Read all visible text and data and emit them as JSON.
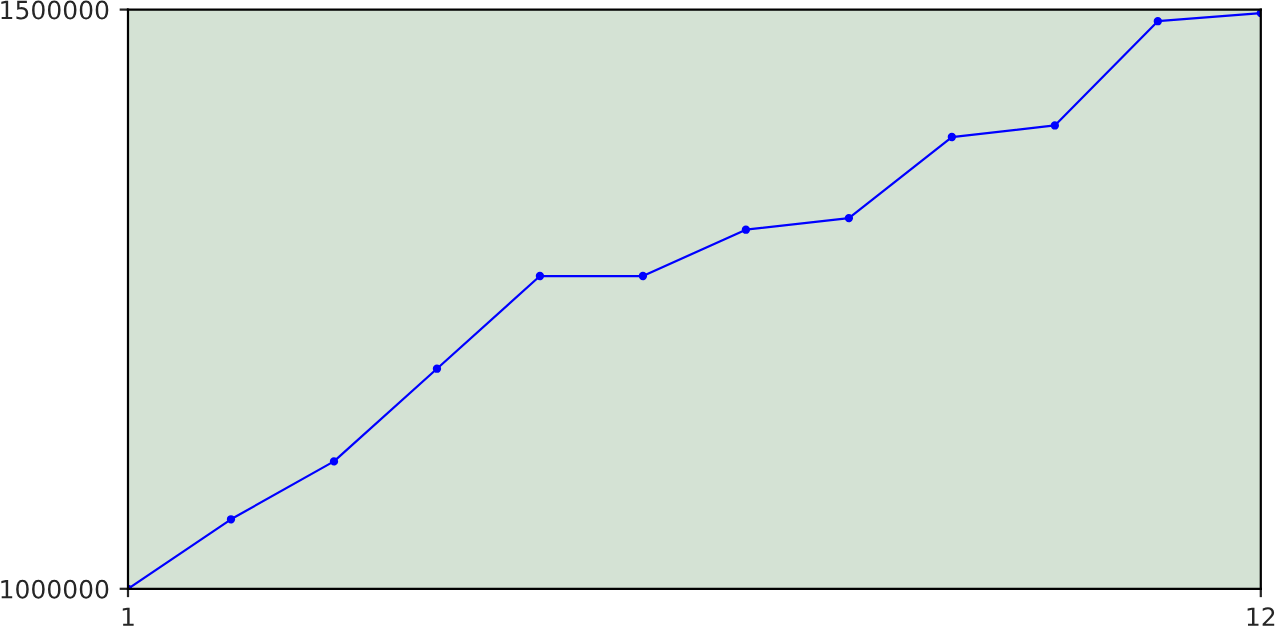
{
  "chart_data": {
    "type": "line",
    "x": [
      1,
      2,
      3,
      4,
      5,
      6,
      7,
      8,
      9,
      10,
      11,
      12
    ],
    "series": [
      {
        "color": "#0000ff",
        "values": [
          1000000,
          1060000,
          1110000,
          1190000,
          1270000,
          1270000,
          1310000,
          1320000,
          1390000,
          1400000,
          1490000,
          1497000
        ]
      }
    ],
    "xlim": [
      1,
      12
    ],
    "ylim": [
      1000000,
      1500000
    ],
    "xticks": [
      1,
      12
    ],
    "yticks": [
      1000000,
      1500000
    ],
    "grid": false,
    "marker": "circle",
    "line_style": "solid",
    "legend": false
  }
}
